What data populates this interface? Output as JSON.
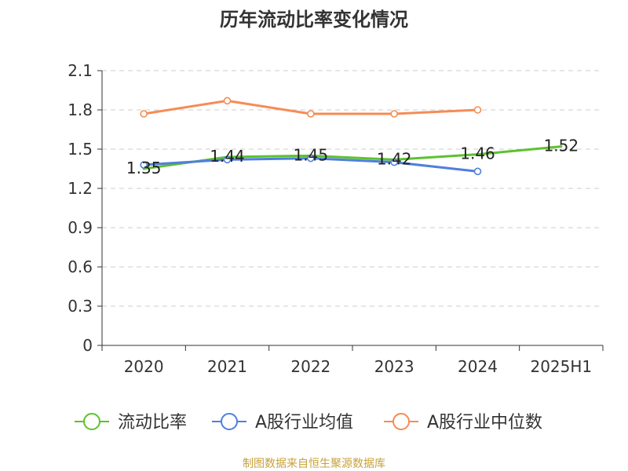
{
  "chart_data": {
    "type": "line",
    "title": "历年流动比率变化情况",
    "categories": [
      "2020",
      "2021",
      "2022",
      "2023",
      "2024",
      "2025H1"
    ],
    "y_ticks": [
      "0",
      "0.3",
      "0.6",
      "0.9",
      "1.2",
      "1.5",
      "1.8",
      "2.1"
    ],
    "ylim": [
      0,
      2.1
    ],
    "grid": "horizontal dashed",
    "legend_position": "bottom",
    "series": [
      {
        "key": "current-ratio",
        "name": "流动比率",
        "color": "#5cc22e",
        "values": [
          1.35,
          1.44,
          1.45,
          1.42,
          1.46,
          1.52
        ],
        "labels": [
          "1.35",
          "1.44",
          "1.45",
          "1.42",
          "1.46",
          "1.52"
        ],
        "show_markers": false
      },
      {
        "key": "industry-average",
        "name": "A股行业均值",
        "color": "#4f7fdc",
        "values": [
          1.38,
          1.42,
          1.43,
          1.4,
          1.33,
          null
        ],
        "labels": null,
        "show_markers": true
      },
      {
        "key": "industry-median",
        "name": "A股行业中位数",
        "color": "#f58c56",
        "values": [
          1.77,
          1.87,
          1.77,
          1.77,
          1.8,
          null
        ],
        "labels": null,
        "show_markers": true
      }
    ],
    "source": "制图数据来自恒生聚源数据库"
  },
  "colors": {
    "axis": "#333333",
    "grid": "#cccccc",
    "text": "#333333",
    "source": "#c8a13a"
  }
}
